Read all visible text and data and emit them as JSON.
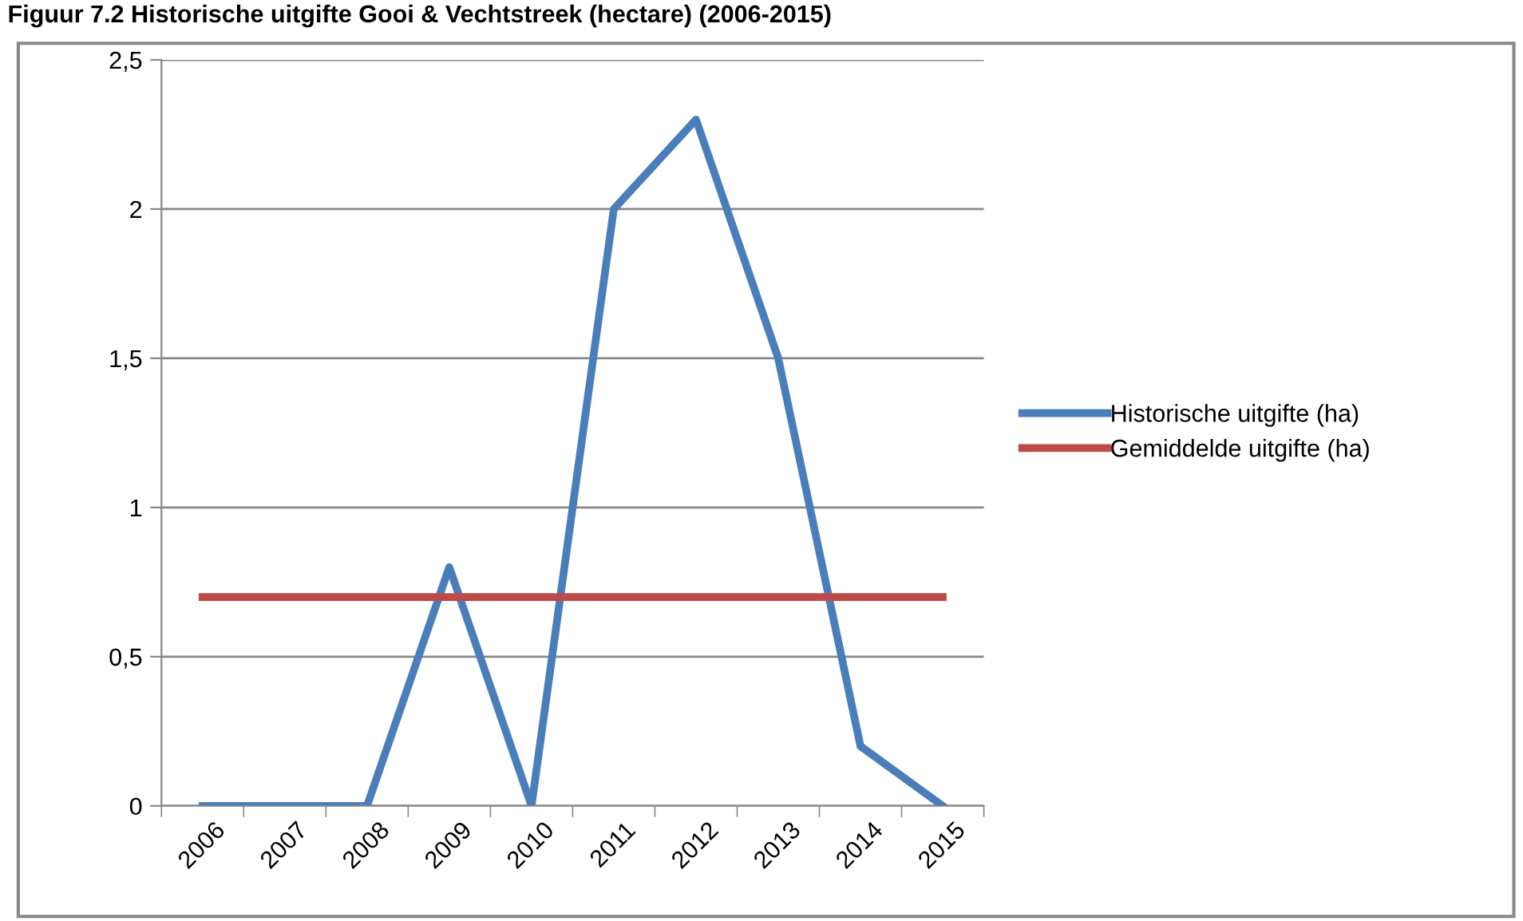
{
  "chart_data": {
    "type": "line",
    "title": "Figuur 7.2 Historische uitgifte Gooi & Vechtstreek (hectare) (2006-2015)",
    "categories": [
      "2006",
      "2007",
      "2008",
      "2009",
      "2010",
      "2011",
      "2012",
      "2013",
      "2014",
      "2015"
    ],
    "series": [
      {
        "name": "Historische uitgifte (ha)",
        "color": "#4a7ebb",
        "values": [
          0,
          0,
          0,
          0.8,
          0,
          2,
          2.3,
          1.5,
          0.2,
          0
        ]
      },
      {
        "name": "Gemiddelde uitgifte (ha)",
        "color": "#be4b48",
        "values": [
          0.7,
          0.7,
          0.7,
          0.7,
          0.7,
          0.7,
          0.7,
          0.7,
          0.7,
          0.7
        ]
      }
    ],
    "ylim": [
      0,
      2.5
    ],
    "yticks": [
      {
        "value": 0,
        "label": "0"
      },
      {
        "value": 0.5,
        "label": "0,5"
      },
      {
        "value": 1,
        "label": "1"
      },
      {
        "value": 1.5,
        "label": "1,5"
      },
      {
        "value": 2,
        "label": "2"
      },
      {
        "value": 2.5,
        "label": "2,5"
      }
    ],
    "grid": "y",
    "legend": "right",
    "marker": "none",
    "line_style": "solid"
  }
}
